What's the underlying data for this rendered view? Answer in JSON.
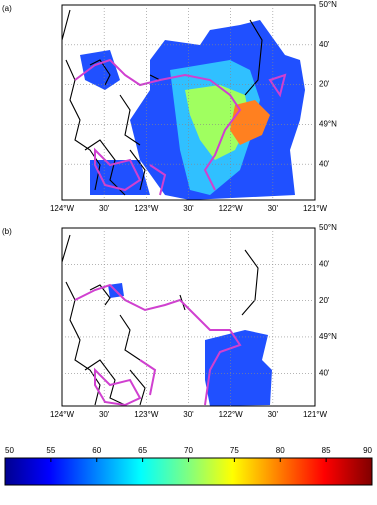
{
  "panels": [
    {
      "label": "(a)",
      "x_labels": [
        "124°W",
        "30'",
        "123°W",
        "30'",
        "122°W",
        "30'",
        "121°W"
      ],
      "y_labels": [
        "50°N",
        "40'",
        "20'",
        "49°N",
        "40'"
      ]
    },
    {
      "label": "(b)",
      "x_labels": [
        "124°W",
        "30'",
        "123°W",
        "30'",
        "122°W",
        "30'",
        "121°W"
      ],
      "y_labels": [
        "50°N",
        "40'",
        "20'",
        "49°N",
        "40'"
      ]
    }
  ],
  "colorbar": {
    "lim": [
      50,
      90
    ],
    "ticks": [
      50,
      55,
      60,
      65,
      70,
      75,
      80,
      85,
      90
    ]
  }
}
